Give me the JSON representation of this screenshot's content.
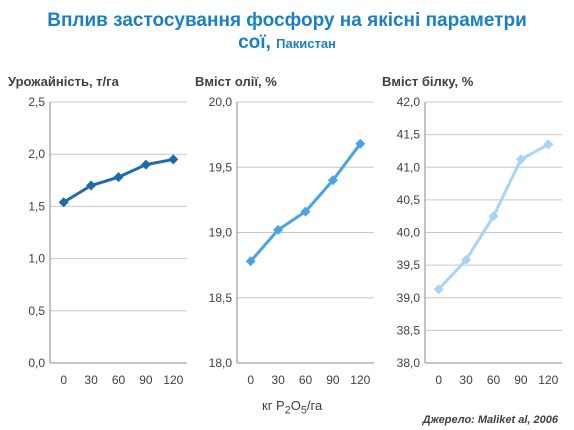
{
  "title": {
    "line1": "Вплив застосування фосфору на якісні параметри",
    "line2_main": "сої,",
    "line2_sub": "Пакистан"
  },
  "x_unit_label_prefix": "кг P",
  "x_unit_label_sub1": "2",
  "x_unit_label_mid": "O",
  "x_unit_label_sub2": "5",
  "x_unit_label_suffix": "/га",
  "source": "Джерело: Maliket al, 2006",
  "chart_data": [
    {
      "type": "line",
      "ylabel": "Урожайність, т/га",
      "categories": [
        "0",
        "30",
        "60",
        "90",
        "120"
      ],
      "values": [
        1.54,
        1.7,
        1.78,
        1.9,
        1.95
      ],
      "ylim": [
        0.0,
        2.5
      ],
      "yticks": [
        "0,0",
        "0,5",
        "1,0",
        "1,5",
        "2,0",
        "2,5"
      ],
      "color": "#1f6aa8",
      "grid": true
    },
    {
      "type": "line",
      "ylabel": "Вміст олії, %",
      "categories": [
        "0",
        "30",
        "60",
        "90",
        "120"
      ],
      "values": [
        18.78,
        19.02,
        19.16,
        19.4,
        19.68
      ],
      "ylim": [
        18.0,
        20.0
      ],
      "yticks": [
        "18,0",
        "18,5",
        "19,0",
        "19,5",
        "20,0"
      ],
      "color": "#4aa3e4",
      "grid": true
    },
    {
      "type": "line",
      "ylabel": "Вміст білку, %",
      "categories": [
        "0",
        "30",
        "60",
        "90",
        "120"
      ],
      "values": [
        39.13,
        39.58,
        40.25,
        41.12,
        41.35
      ],
      "ylim": [
        38.0,
        42.0
      ],
      "yticks": [
        "38,0",
        "38,5",
        "39,0",
        "39,5",
        "40,0",
        "40,5",
        "41,0",
        "41,5",
        "42,0"
      ],
      "color": "#a9d4f5",
      "grid": true
    }
  ]
}
